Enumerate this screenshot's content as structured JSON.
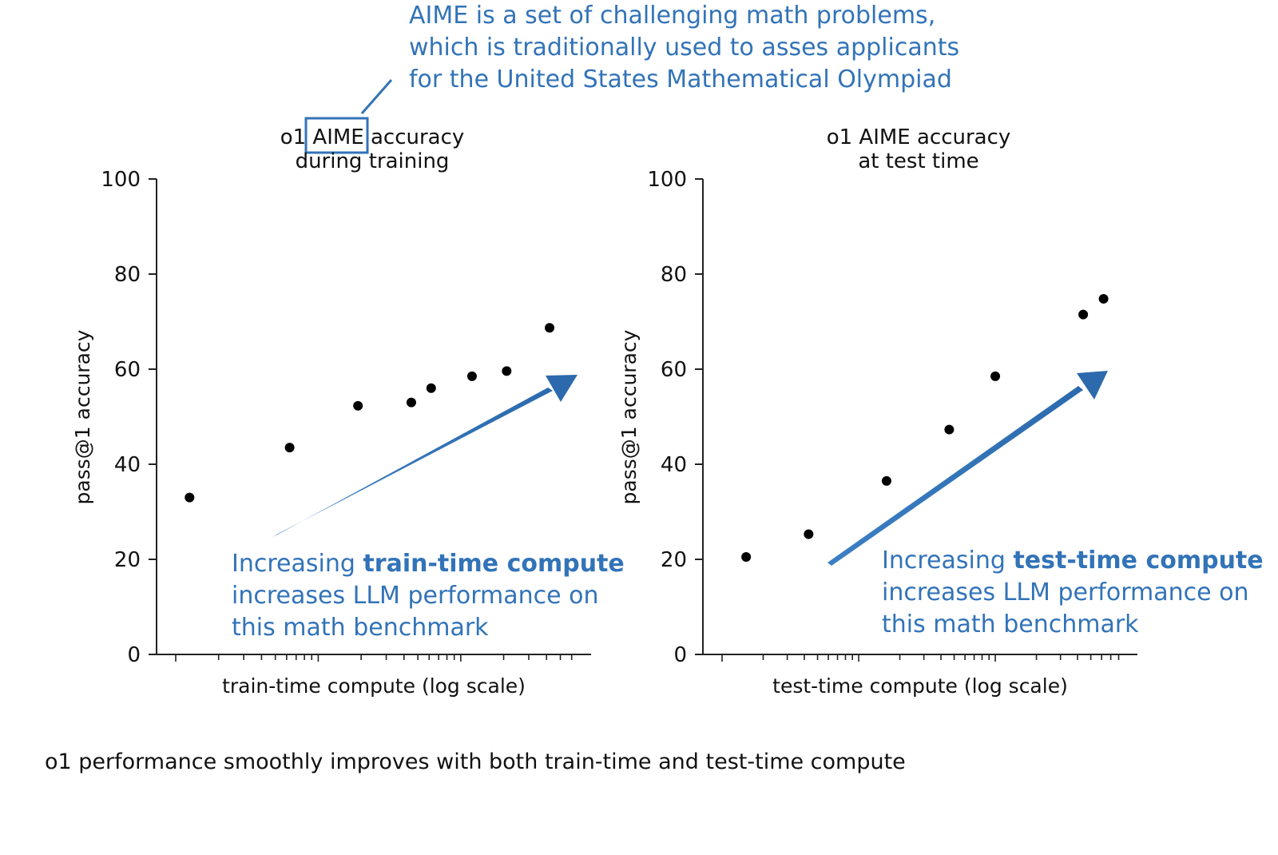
{
  "callout": {
    "lines": [
      "AIME is a set of challenging math problems,",
      "which is traditionally used to asses applicants",
      "for the  United States Mathematical Olympiad"
    ],
    "highlight_word": "AIME"
  },
  "notes": {
    "left": {
      "prefix": "Increasing ",
      "bold": "train-time compute",
      "line2": "increases LLM performance on",
      "line3": "this math benchmark"
    },
    "right": {
      "prefix": "Increasing ",
      "bold": "test-time compute",
      "line2": "increases LLM performance on",
      "line3": "this math benchmark"
    }
  },
  "caption": "o1 performance smoothly improves with both train-time and test-time compute",
  "colors": {
    "annotation_blue": "#3273b8",
    "point": "#000000",
    "axis": "#222222"
  },
  "chart_data": [
    {
      "type": "scatter",
      "title": [
        "o1 AIME accuracy",
        "during training"
      ],
      "xlabel": "train-time compute (log scale)",
      "ylabel": "pass@1 accuracy",
      "xscale": "log",
      "ylim": [
        0,
        100
      ],
      "yticks": [
        0,
        20,
        40,
        60,
        80,
        100
      ],
      "x_labeled": false,
      "points": [
        {
          "x": 1.25,
          "y": 33
        },
        {
          "x": 6.3,
          "y": 43.5
        },
        {
          "x": 19,
          "y": 52.3
        },
        {
          "x": 45,
          "y": 53
        },
        {
          "x": 62,
          "y": 56
        },
        {
          "x": 120,
          "y": 58.5
        },
        {
          "x": 210,
          "y": 59.6
        },
        {
          "x": 420,
          "y": 68.7
        }
      ]
    },
    {
      "type": "scatter",
      "title": [
        "o1 AIME accuracy",
        "at test time"
      ],
      "xlabel": "test-time compute (log scale)",
      "ylabel": "pass@1 accuracy",
      "xscale": "log",
      "ylim": [
        0,
        100
      ],
      "yticks": [
        0,
        20,
        40,
        60,
        80,
        100
      ],
      "x_labeled": false,
      "points": [
        {
          "x": 1.5,
          "y": 20.5
        },
        {
          "x": 4.3,
          "y": 25.3
        },
        {
          "x": 16,
          "y": 36.5
        },
        {
          "x": 46,
          "y": 47.3
        },
        {
          "x": 100,
          "y": 58.5
        },
        {
          "x": 440,
          "y": 71.5
        },
        {
          "x": 620,
          "y": 74.8
        }
      ]
    }
  ]
}
